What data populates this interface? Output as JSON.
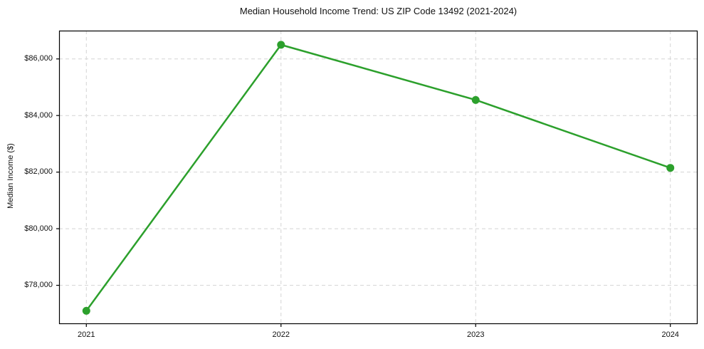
{
  "chart_data": {
    "type": "line",
    "title": "Median Household Income Trend: US ZIP Code 13492 (2021-2024)",
    "xlabel": "",
    "ylabel": "Median Income ($)",
    "x": [
      2021,
      2022,
      2023,
      2024
    ],
    "series": [
      {
        "name": "Median Household Income",
        "values": [
          77100,
          86500,
          84550,
          82150
        ],
        "color": "#2ca02c"
      }
    ],
    "xticks": [
      2021,
      2022,
      2023,
      2024
    ],
    "xtick_labels": [
      "2021",
      "2022",
      "2023",
      "2024"
    ],
    "yticks": [
      78000,
      80000,
      82000,
      84000,
      86000
    ],
    "ytick_labels": [
      "$78,000",
      "$80,000",
      "$82,000",
      "$84,000",
      "$86,000"
    ],
    "xlim": [
      2020.86,
      2024.14
    ],
    "ylim": [
      76630,
      87000
    ],
    "grid": true,
    "legend": false,
    "grid_color": "#d4d4d4",
    "grid_dash": "5 4",
    "spine_color": "#000000",
    "text_color": "#111111",
    "background": "#ffffff",
    "line_width": 2.5,
    "marker_radius": 5.5
  }
}
